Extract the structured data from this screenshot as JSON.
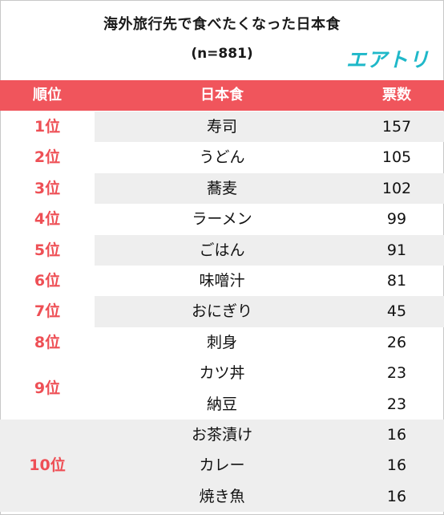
{
  "title": "海外旅行先で食べたくなった日本食",
  "subtitle": "(n=881)",
  "logo": "エアトリ",
  "header": {
    "rank": "順位",
    "food": "日本食",
    "votes": "票数"
  },
  "rows": [
    {
      "rank": "1位",
      "food": "寿司",
      "votes": "157"
    },
    {
      "rank": "2位",
      "food": "うどん",
      "votes": "105"
    },
    {
      "rank": "3位",
      "food": "蕎麦",
      "votes": "102"
    },
    {
      "rank": "4位",
      "food": "ラーメン",
      "votes": "99"
    },
    {
      "rank": "5位",
      "food": "ごはん",
      "votes": "91"
    },
    {
      "rank": "6位",
      "food": "味噌汁",
      "votes": "81"
    },
    {
      "rank": "7位",
      "food": "おにぎり",
      "votes": "45"
    },
    {
      "rank": "8位",
      "food": "刺身",
      "votes": "26"
    },
    {
      "rank": "9位",
      "food": "カツ丼",
      "votes": "23"
    },
    {
      "rank": "",
      "food": "納豆",
      "votes": "23"
    },
    {
      "rank": "10位",
      "food": "お茶漬け",
      "votes": "16"
    },
    {
      "rank": "",
      "food": "カレー",
      "votes": "16"
    },
    {
      "rank": "",
      "food": "焼き魚",
      "votes": "16"
    }
  ],
  "colors": {
    "header_bg": "#f0555c",
    "rank_text": "#ee4f55",
    "row_shade": "#eeeeee",
    "logo": "#1fb8c9"
  }
}
